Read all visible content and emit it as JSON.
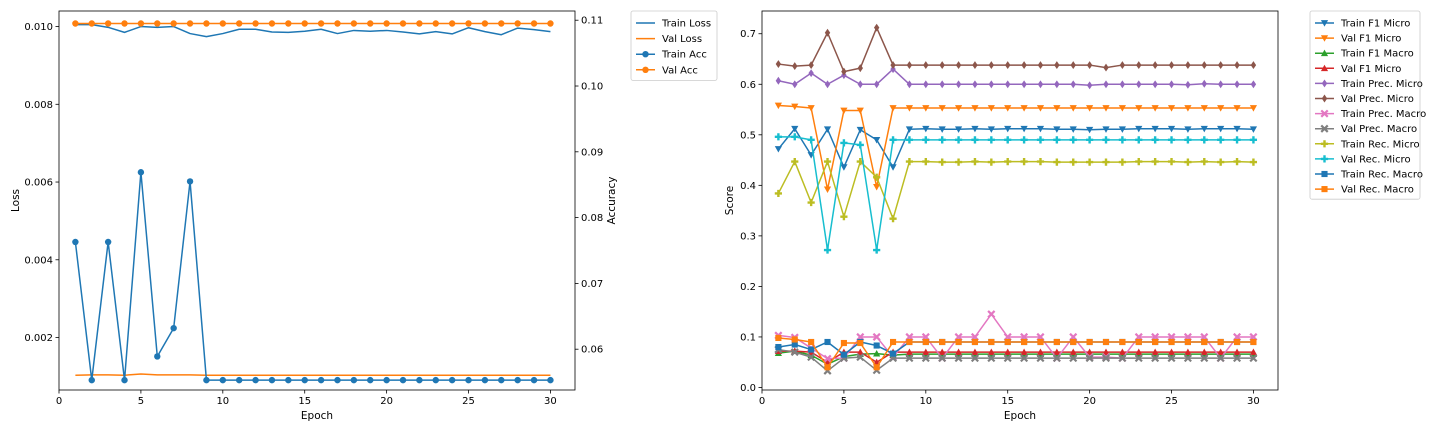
{
  "chart_data": [
    {
      "type": "line",
      "xlabel": "Epoch",
      "ylabel": "Loss",
      "y2label": "Accuracy",
      "legend_position": "outside-right",
      "grid": false,
      "x": [
        1,
        2,
        3,
        4,
        5,
        6,
        7,
        8,
        9,
        10,
        11,
        12,
        13,
        14,
        15,
        16,
        17,
        18,
        19,
        20,
        21,
        22,
        23,
        24,
        25,
        26,
        27,
        28,
        29,
        30
      ],
      "xlim": [
        0,
        31.5
      ],
      "ylim": [
        0.00065,
        0.0104
      ],
      "y2lim": [
        0.0538,
        0.1114
      ],
      "xticks": [
        "0",
        "5",
        "10",
        "15",
        "20",
        "25",
        "30"
      ],
      "yticks": [
        "0.002",
        "0.004",
        "0.006",
        "0.008",
        "0.010"
      ],
      "y2ticks": [
        "0.06",
        "0.07",
        "0.08",
        "0.09",
        "0.10",
        "0.11"
      ],
      "series": [
        {
          "name": "Train Loss",
          "axis": "left",
          "color": "#1f77b4",
          "marker": "none",
          "values": [
            0.01005,
            0.01005,
            0.00998,
            0.00985,
            0.01,
            0.00998,
            0.01,
            0.00982,
            0.00974,
            0.00982,
            0.00993,
            0.00993,
            0.00986,
            0.00985,
            0.00988,
            0.00993,
            0.00982,
            0.0099,
            0.00988,
            0.0099,
            0.00986,
            0.00981,
            0.00987,
            0.00981,
            0.00997,
            0.00987,
            0.00979,
            0.00996,
            0.00992,
            0.00987
          ]
        },
        {
          "name": "Val Loss",
          "axis": "left",
          "color": "#ff7f0e",
          "marker": "none",
          "values": [
            0.00103,
            0.00104,
            0.00104,
            0.00103,
            0.00106,
            0.00104,
            0.00104,
            0.00104,
            0.00103,
            0.00103,
            0.00103,
            0.00103,
            0.00103,
            0.00103,
            0.00103,
            0.00103,
            0.00103,
            0.00103,
            0.00103,
            0.00103,
            0.00103,
            0.00103,
            0.00103,
            0.00103,
            0.00103,
            0.00103,
            0.00103,
            0.00103,
            0.00103,
            0.00103
          ]
        },
        {
          "name": "Train Acc",
          "axis": "right",
          "color": "#1f77b4",
          "marker": "circle",
          "values": [
            0.0763,
            0.0553,
            0.0763,
            0.0553,
            0.0869,
            0.0589,
            0.0632,
            0.0855,
            0.0553,
            0.0553,
            0.0553,
            0.0553,
            0.0553,
            0.0553,
            0.0553,
            0.0553,
            0.0553,
            0.0553,
            0.0553,
            0.0553,
            0.0553,
            0.0553,
            0.0553,
            0.0553,
            0.0553,
            0.0553,
            0.0553,
            0.0553,
            0.0553,
            0.0553
          ]
        },
        {
          "name": "Val Acc",
          "axis": "right",
          "color": "#ff7f0e",
          "marker": "circle",
          "values": [
            0.1095,
            0.1095,
            0.1095,
            0.1095,
            0.1095,
            0.1095,
            0.1095,
            0.1095,
            0.1095,
            0.1095,
            0.1095,
            0.1095,
            0.1095,
            0.1095,
            0.1095,
            0.1095,
            0.1095,
            0.1095,
            0.1095,
            0.1095,
            0.1095,
            0.1095,
            0.1095,
            0.1095,
            0.1095,
            0.1095,
            0.1095,
            0.1095,
            0.1095,
            0.1095
          ]
        }
      ]
    },
    {
      "type": "line",
      "xlabel": "Epoch",
      "ylabel": "Score",
      "legend_position": "outside-right",
      "grid": false,
      "x": [
        1,
        2,
        3,
        4,
        5,
        6,
        7,
        8,
        9,
        10,
        11,
        12,
        13,
        14,
        15,
        16,
        17,
        18,
        19,
        20,
        21,
        22,
        23,
        24,
        25,
        26,
        27,
        28,
        29,
        30
      ],
      "xlim": [
        0,
        31.5
      ],
      "ylim": [
        -0.005,
        0.745
      ],
      "xticks": [
        "0",
        "5",
        "10",
        "15",
        "20",
        "25",
        "30"
      ],
      "yticks": [
        "0.0",
        "0.1",
        "0.2",
        "0.3",
        "0.4",
        "0.5",
        "0.6",
        "0.7"
      ],
      "series": [
        {
          "name": "Train F1 Micro",
          "color": "#1f77b4",
          "marker": "triangle-down",
          "values": [
            0.472,
            0.512,
            0.46,
            0.511,
            0.436,
            0.51,
            0.49,
            0.436,
            0.511,
            0.512,
            0.511,
            0.511,
            0.512,
            0.511,
            0.512,
            0.512,
            0.512,
            0.511,
            0.511,
            0.51,
            0.511,
            0.511,
            0.512,
            0.512,
            0.512,
            0.511,
            0.512,
            0.512,
            0.512,
            0.511
          ]
        },
        {
          "name": "Val F1 Micro",
          "color": "#ff7f0e",
          "marker": "triangle-down",
          "values": [
            0.558,
            0.556,
            0.553,
            0.392,
            0.548,
            0.548,
            0.397,
            0.553,
            0.553,
            0.553,
            0.553,
            0.553,
            0.553,
            0.553,
            0.553,
            0.553,
            0.553,
            0.553,
            0.553,
            0.553,
            0.553,
            0.553,
            0.553,
            0.553,
            0.553,
            0.553,
            0.553,
            0.553,
            0.553,
            0.553
          ]
        },
        {
          "name": "Train F1 Macro",
          "color": "#2ca02c",
          "marker": "triangle-up",
          "values": [
            0.068,
            0.072,
            0.064,
            0.046,
            0.061,
            0.066,
            0.067,
            0.064,
            0.066,
            0.066,
            0.066,
            0.066,
            0.066,
            0.066,
            0.066,
            0.066,
            0.066,
            0.066,
            0.066,
            0.066,
            0.066,
            0.066,
            0.066,
            0.066,
            0.066,
            0.066,
            0.066,
            0.066,
            0.066,
            0.066
          ]
        },
        {
          "name": "Val F1 Micro",
          "color": "#d62728",
          "marker": "triangle-up",
          "values": [
            0.072,
            0.072,
            0.07,
            0.05,
            0.07,
            0.07,
            0.05,
            0.07,
            0.07,
            0.07,
            0.07,
            0.07,
            0.07,
            0.07,
            0.07,
            0.07,
            0.07,
            0.07,
            0.07,
            0.07,
            0.07,
            0.07,
            0.07,
            0.07,
            0.07,
            0.07,
            0.07,
            0.07,
            0.07,
            0.07
          ]
        },
        {
          "name": "Train Prec. Micro",
          "color": "#9467bd",
          "marker": "diamond",
          "values": [
            0.607,
            0.6,
            0.622,
            0.6,
            0.618,
            0.6,
            0.6,
            0.63,
            0.6,
            0.6,
            0.6,
            0.6,
            0.6,
            0.6,
            0.6,
            0.6,
            0.6,
            0.6,
            0.6,
            0.598,
            0.6,
            0.6,
            0.6,
            0.6,
            0.6,
            0.599,
            0.601,
            0.6,
            0.6,
            0.6
          ]
        },
        {
          "name": "Val Prec. Micro",
          "color": "#8c564b",
          "marker": "diamond",
          "values": [
            0.64,
            0.636,
            0.638,
            0.702,
            0.625,
            0.632,
            0.712,
            0.638,
            0.638,
            0.638,
            0.638,
            0.638,
            0.638,
            0.638,
            0.638,
            0.638,
            0.638,
            0.638,
            0.638,
            0.638,
            0.633,
            0.638,
            0.638,
            0.638,
            0.638,
            0.638,
            0.638,
            0.638,
            0.638,
            0.638
          ]
        },
        {
          "name": "Train Prec. Macro",
          "color": "#e377c2",
          "marker": "x",
          "values": [
            0.103,
            0.099,
            0.078,
            0.057,
            0.058,
            0.1,
            0.1,
            0.06,
            0.1,
            0.1,
            0.058,
            0.1,
            0.1,
            0.145,
            0.1,
            0.1,
            0.1,
            0.058,
            0.1,
            0.06,
            0.06,
            0.058,
            0.1,
            0.1,
            0.1,
            0.1,
            0.1,
            0.058,
            0.1,
            0.1
          ]
        },
        {
          "name": "Val Prec. Macro",
          "color": "#7f7f7f",
          "marker": "x",
          "values": [
            0.075,
            0.07,
            0.06,
            0.033,
            0.058,
            0.06,
            0.034,
            0.058,
            0.058,
            0.058,
            0.058,
            0.058,
            0.058,
            0.058,
            0.058,
            0.058,
            0.058,
            0.058,
            0.058,
            0.058,
            0.058,
            0.058,
            0.058,
            0.058,
            0.058,
            0.058,
            0.058,
            0.058,
            0.058,
            0.058
          ]
        },
        {
          "name": "Train Rec. Micro",
          "color": "#bcbd22",
          "marker": "plus",
          "values": [
            0.384,
            0.447,
            0.366,
            0.447,
            0.338,
            0.447,
            0.416,
            0.334,
            0.447,
            0.447,
            0.446,
            0.446,
            0.447,
            0.446,
            0.447,
            0.447,
            0.447,
            0.446,
            0.446,
            0.446,
            0.446,
            0.446,
            0.447,
            0.447,
            0.447,
            0.446,
            0.447,
            0.446,
            0.447,
            0.446
          ]
        },
        {
          "name": "Val Rec. Micro",
          "color": "#17becf",
          "marker": "plus",
          "values": [
            0.496,
            0.496,
            0.49,
            0.272,
            0.484,
            0.48,
            0.272,
            0.49,
            0.49,
            0.49,
            0.49,
            0.49,
            0.49,
            0.49,
            0.49,
            0.49,
            0.49,
            0.49,
            0.49,
            0.49,
            0.49,
            0.49,
            0.49,
            0.49,
            0.49,
            0.49,
            0.49,
            0.49,
            0.49,
            0.49
          ]
        },
        {
          "name": "Train Rec. Macro",
          "color": "#1f77b4",
          "marker": "square",
          "values": [
            0.08,
            0.085,
            0.075,
            0.09,
            0.065,
            0.09,
            0.083,
            0.067,
            0.09,
            0.09,
            0.09,
            0.09,
            0.09,
            0.09,
            0.09,
            0.09,
            0.09,
            0.09,
            0.09,
            0.09,
            0.09,
            0.09,
            0.09,
            0.09,
            0.09,
            0.09,
            0.09,
            0.09,
            0.09,
            0.09
          ]
        },
        {
          "name": "Val Rec. Macro",
          "color": "#ff7f0e",
          "marker": "square",
          "values": [
            0.098,
            0.095,
            0.09,
            0.04,
            0.088,
            0.088,
            0.04,
            0.09,
            0.09,
            0.09,
            0.09,
            0.09,
            0.09,
            0.09,
            0.09,
            0.09,
            0.09,
            0.09,
            0.09,
            0.09,
            0.09,
            0.09,
            0.09,
            0.09,
            0.09,
            0.09,
            0.09,
            0.09,
            0.09,
            0.09
          ]
        }
      ]
    }
  ]
}
